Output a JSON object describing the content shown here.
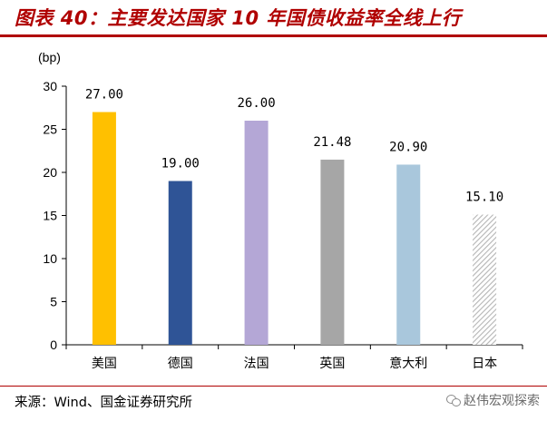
{
  "header": {
    "title": "图表 40：主要发达国家 10 年国债收益率全线上行"
  },
  "footer": {
    "source": "来源：Wind、国金证券研究所",
    "brand": "赵伟宏观探索"
  },
  "chart_data": {
    "type": "bar",
    "title": "",
    "ylabel": "(bp)",
    "xlabel": "",
    "ylim": [
      0,
      30
    ],
    "yticks": [
      0,
      5,
      10,
      15,
      20,
      25,
      30
    ],
    "categories": [
      "美国",
      "德国",
      "法国",
      "英国",
      "意大利",
      "日本"
    ],
    "values": [
      27.0,
      19.0,
      26.0,
      21.48,
      20.9,
      15.1
    ],
    "value_labels": [
      "27.00",
      "19.00",
      "26.00",
      "21.48",
      "20.90",
      "15.10"
    ],
    "colors": [
      "#FFC000",
      "#2F5496",
      "#B4A7D6",
      "#A6A6A6",
      "#A9C7DC",
      "#BFBFBF"
    ],
    "patterns": [
      "solid",
      "solid",
      "solid",
      "solid",
      "solid",
      "diagonal-hatch"
    ],
    "grid": false,
    "legend": "none"
  }
}
